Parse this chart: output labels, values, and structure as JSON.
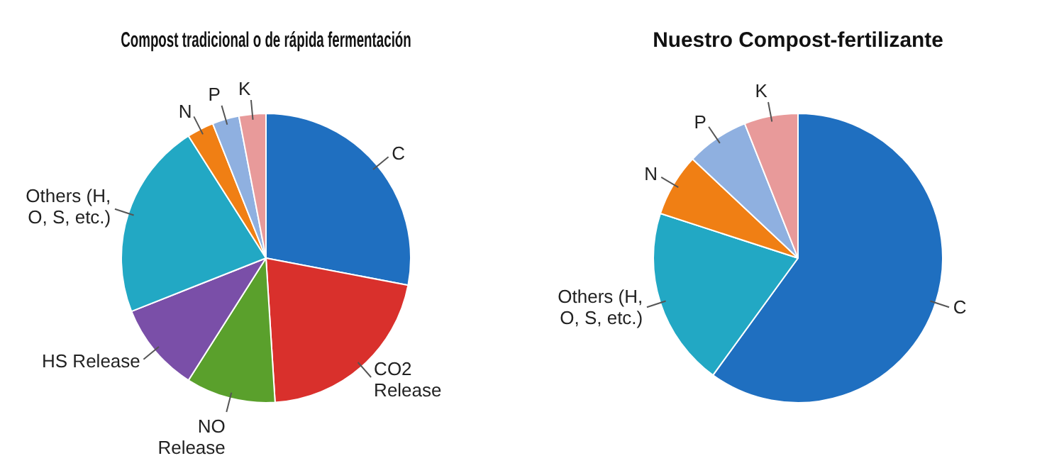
{
  "chart_data": [
    {
      "type": "pie",
      "title": "Compost tradicional o de rápida fermentación",
      "categories": [
        "C",
        "CO2 Release",
        "NO Release",
        "HS Release",
        "Others (H, O, S, etc.)",
        "N",
        "P",
        "K"
      ],
      "values": [
        28,
        21,
        10,
        10,
        22,
        3,
        3,
        3
      ],
      "colors": [
        "#1f6fc0",
        "#d9302c",
        "#5aa02c",
        "#7a4fa8",
        "#22a8c4",
        "#f07f14",
        "#8fb0e0",
        "#e89a9a"
      ],
      "legend": false
    },
    {
      "type": "pie",
      "title": "Nuestro Compost-fertilizante",
      "categories": [
        "C",
        "Others (H, O, S, etc.)",
        "N",
        "P",
        "K"
      ],
      "values": [
        60,
        20,
        7,
        7,
        6
      ],
      "colors": [
        "#1f6fc0",
        "#22a8c4",
        "#f07f14",
        "#8fb0e0",
        "#e89a9a"
      ],
      "legend": false
    }
  ]
}
